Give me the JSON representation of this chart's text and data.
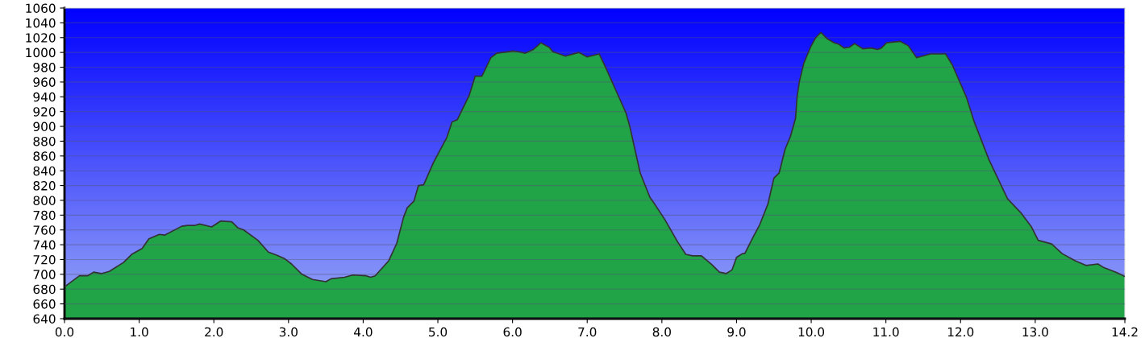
{
  "chart_data": {
    "type": "area",
    "grid": "y",
    "legend": false,
    "xlim": [
      0,
      14.2
    ],
    "ylim": [
      640,
      1060
    ],
    "xticks": [
      {
        "value": 0,
        "label": "0.0"
      },
      {
        "value": 1,
        "label": "1.0"
      },
      {
        "value": 2,
        "label": "2.0"
      },
      {
        "value": 3,
        "label": "3.0"
      },
      {
        "value": 4,
        "label": "4.0"
      },
      {
        "value": 5,
        "label": "5.0"
      },
      {
        "value": 6,
        "label": "6.0"
      },
      {
        "value": 7,
        "label": "7.0"
      },
      {
        "value": 8,
        "label": "8.0"
      },
      {
        "value": 9,
        "label": "9.0"
      },
      {
        "value": 10,
        "label": "10.0"
      },
      {
        "value": 11,
        "label": "11.0"
      },
      {
        "value": 12,
        "label": "12.0"
      },
      {
        "value": 13,
        "label": "13.0"
      },
      {
        "value": 14.2,
        "label": "14.2"
      }
    ],
    "yticks": [
      640,
      660,
      680,
      700,
      720,
      740,
      760,
      780,
      800,
      820,
      840,
      860,
      880,
      900,
      920,
      940,
      960,
      980,
      1000,
      1020,
      1040,
      1060
    ],
    "series": [
      {
        "color": "#21a348",
        "x": [
          0,
          0.2,
          0.31,
          0.39,
          0.49,
          0.6,
          0.79,
          0.9,
          1.04,
          1.13,
          1.27,
          1.34,
          1.57,
          1.65,
          1.74,
          1.81,
          1.97,
          2.09,
          2.24,
          2.32,
          2.4,
          2.59,
          2.73,
          2.84,
          2.95,
          3.04,
          3.18,
          3.32,
          3.5,
          3.57,
          3.75,
          3.86,
          4.04,
          4.1,
          4.16,
          4.34,
          4.45,
          4.54,
          4.59,
          4.68,
          4.74,
          4.81,
          4.94,
          5.12,
          5.19,
          5.26,
          5.42,
          5.5,
          5.59,
          5.71,
          5.79,
          6.01,
          6.08,
          6.17,
          6.28,
          6.38,
          6.49,
          6.54,
          6.71,
          6.89,
          7.0,
          7.16,
          7.25,
          7.52,
          7.57,
          7.71,
          7.84,
          7.89,
          8.04,
          8.21,
          8.32,
          8.41,
          8.53,
          8.67,
          8.77,
          8.86,
          8.94,
          9.0,
          9.08,
          9.11,
          9.22,
          9.31,
          9.42,
          9.5,
          9.57,
          9.65,
          9.72,
          9.79,
          9.81,
          9.84,
          9.9,
          9.99,
          10.06,
          10.13,
          10.22,
          10.31,
          10.37,
          10.44,
          10.51,
          10.58,
          10.69,
          10.8,
          10.89,
          10.94,
          11.01,
          11.19,
          11.3,
          11.41,
          11.6,
          11.8,
          11.89,
          12.08,
          12.18,
          12.38,
          12.63,
          12.81,
          12.95,
          13.04,
          13.22,
          13.36,
          13.54,
          13.68,
          13.84,
          13.92,
          14.1,
          14.2
        ],
        "values": [
          683,
          698,
          698,
          703,
          701,
          704,
          716,
          727,
          735,
          748,
          754,
          753,
          765,
          766,
          766,
          768,
          764,
          772,
          771,
          763,
          760,
          746,
          730,
          726,
          721,
          714,
          700,
          693,
          690,
          694,
          696,
          699,
          698,
          696,
          698,
          718,
          742,
          777,
          790,
          799,
          820,
          821,
          851,
          885,
          906,
          909,
          942,
          968,
          968,
          993,
          999,
          1002,
          1001,
          999,
          1004,
          1013,
          1007,
          1001,
          995,
          1000,
          994,
          998,
          979,
          918,
          900,
          837,
          804,
          797,
          774,
          744,
          727,
          725,
          725,
          713,
          703,
          701,
          706,
          723,
          728,
          728,
          750,
          767,
          795,
          830,
          837,
          869,
          886,
          911,
          939,
          960,
          985,
          1007,
          1020,
          1027,
          1018,
          1013,
          1011,
          1006,
          1007,
          1012,
          1005,
          1006,
          1004,
          1006,
          1013,
          1015,
          1009,
          993,
          998,
          998,
          983,
          939,
          907,
          855,
          802,
          783,
          764,
          746,
          741,
          728,
          718,
          712,
          714,
          709,
          702,
          697
        ]
      }
    ]
  }
}
